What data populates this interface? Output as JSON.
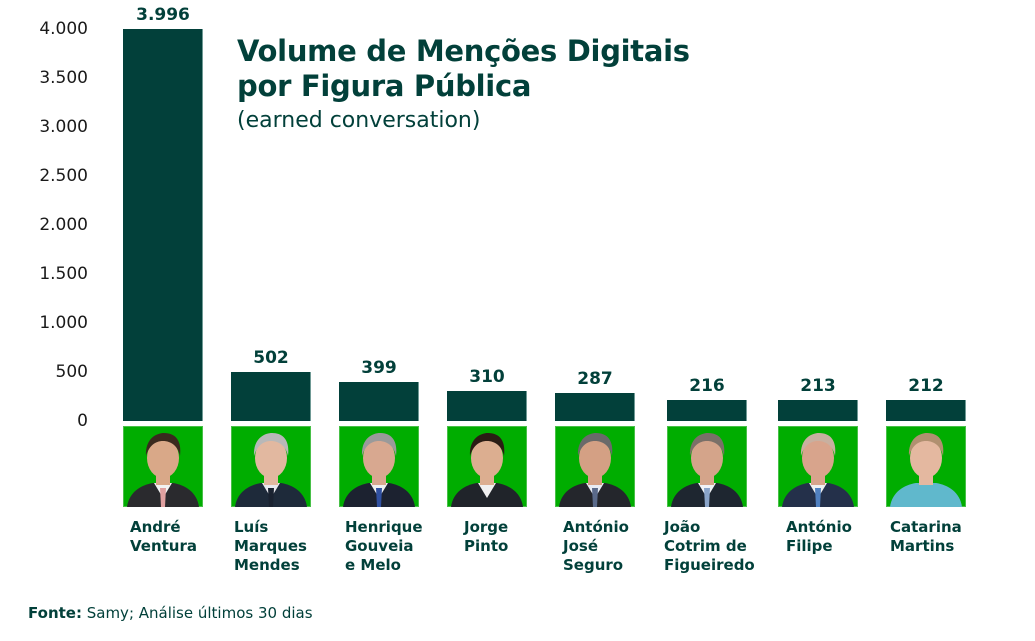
{
  "chart_data": {
    "type": "bar",
    "title": "Volume de Menções Digitais por Figura Pública",
    "title_lines": [
      "Volume de Menções Digitais",
      "por Figura Pública"
    ],
    "subtitle": "(earned conversation)",
    "xlabel": "",
    "ylabel": "",
    "ylim": [
      0,
      4000
    ],
    "yticks": [
      0,
      500,
      1000,
      1500,
      2000,
      2500,
      3000,
      3500,
      4000
    ],
    "ytick_labels": [
      "0",
      "500",
      "1.000",
      "1.500",
      "2.000",
      "2.500",
      "3.000",
      "3.500",
      "4.000"
    ],
    "grid": false,
    "legend": "none",
    "categories": [
      "André Ventura",
      "Luís Marques Mendes",
      "Henrique Gouveia e Melo",
      "Jorge Pinto",
      "António José Seguro",
      "João Cotrim de Figueiredo",
      "António Filipe",
      "Catarina Martins"
    ],
    "category_label_lines": [
      "André\nVentura",
      "Luís\nMarques\nMendes",
      "Henrique\nGouveia\ne Melo",
      "Jorge\nPinto",
      "António\nJosé\nSeguro",
      "João\nCotrim de\nFigueiredo",
      "António\nFilipe",
      "Catarina\nMartins"
    ],
    "values": [
      3996,
      502,
      399,
      310,
      287,
      216,
      213,
      212
    ],
    "value_labels": [
      "3.996",
      "502",
      "399",
      "310",
      "287",
      "216",
      "213",
      "212"
    ],
    "colors": {
      "bar": "#02403a",
      "photo_background": "#00ad00",
      "text": "#02403a",
      "axis_text": "#1a1a1a"
    }
  },
  "photos": [
    {
      "name": "André Ventura",
      "icon": "portrait-icon",
      "hair": "#3a2a1e",
      "skin": "#d9a888",
      "suit": "#2a2a2e",
      "shirt": "#f2f2f2",
      "tie": "#e0a0a0"
    },
    {
      "name": "Luís Marques Mendes",
      "icon": "portrait-icon",
      "hair": "#b8b8b8",
      "skin": "#e2b8a0",
      "suit": "#1e2a3a",
      "shirt": "#e8e8ee",
      "tie": "#1a2230"
    },
    {
      "name": "Henrique Gouveia e Melo",
      "icon": "portrait-icon",
      "hair": "#9a9a9a",
      "skin": "#d8a890",
      "suit": "#1c2230",
      "shirt": "#f0f0f0",
      "tie": "#3050a0"
    },
    {
      "name": "Jorge Pinto",
      "icon": "portrait-icon",
      "hair": "#2a1c14",
      "skin": "#dcae90",
      "suit": "#20242a",
      "shirt": "#f0f0f0",
      "tie": ""
    },
    {
      "name": "António José Seguro",
      "icon": "portrait-icon",
      "hair": "#6a6a6a",
      "skin": "#d4a084",
      "suit": "#24262c",
      "shirt": "#e8ecf4",
      "tie": "#5a6a8a"
    },
    {
      "name": "João Cotrim de Figueiredo",
      "icon": "portrait-icon",
      "hair": "#7a7068",
      "skin": "#d4a48a",
      "suit": "#1e2630",
      "shirt": "#f0f2f6",
      "tie": "#8aa4c8"
    },
    {
      "name": "António Filipe",
      "icon": "portrait-icon",
      "hair": "#c8b0a0",
      "skin": "#d8a48c",
      "suit": "#24304a",
      "shirt": "#f0f0f0",
      "tie": "#5080c0"
    },
    {
      "name": "Catarina Martins",
      "icon": "portrait-icon",
      "hair": "#b09070",
      "skin": "#e4b8a0",
      "suit": "#60b8cc",
      "shirt": "#60b8cc",
      "tie": ""
    }
  ],
  "footer": {
    "label": "Fonte:",
    "text": " Samy; Análise últimos 30 dias"
  }
}
